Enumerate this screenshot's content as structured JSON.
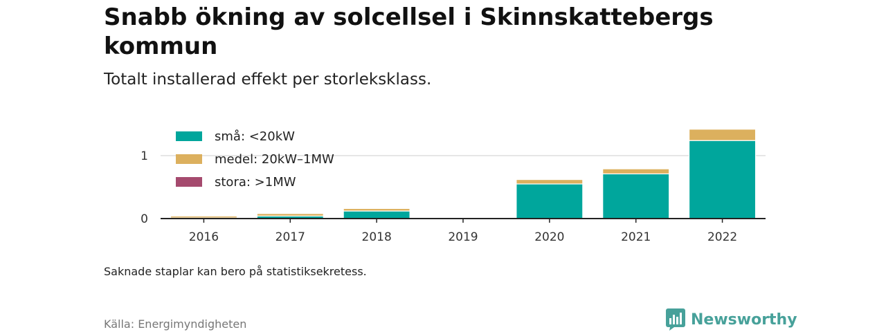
{
  "title": "Snabb ökning av solcellsel i Skinnskattebergs kommun",
  "subtitle": "Totalt installerad effekt per storleksklass.",
  "note": "Saknade staplar kan bero på statistiksekretess.",
  "source": "Källa: Energimyndigheten",
  "brand": {
    "name": "Newsworthy",
    "icon": "bar-chart-logo-icon",
    "color": "#47a19a"
  },
  "chart_data": {
    "type": "bar",
    "stacked": true,
    "categories": [
      "2016",
      "2017",
      "2018",
      "2019",
      "2020",
      "2021",
      "2022"
    ],
    "series": [
      {
        "name": "små: <20kW",
        "color": "#00a69c",
        "values": [
          0.01,
          0.04,
          0.12,
          0,
          0.55,
          0.71,
          1.24
        ]
      },
      {
        "name": "medel: 20kW–1MW",
        "color": "#dcb05e",
        "values": [
          0.03,
          0.04,
          0.04,
          0,
          0.07,
          0.08,
          0.18
        ]
      },
      {
        "name": "stora: >1MW",
        "color": "#a54a6e",
        "values": [
          0,
          0,
          0,
          0,
          0,
          0,
          0
        ]
      }
    ],
    "yticks": [
      0,
      1
    ],
    "ylim": [
      0,
      1.5
    ],
    "grid": true,
    "legend_position": "top-left"
  }
}
